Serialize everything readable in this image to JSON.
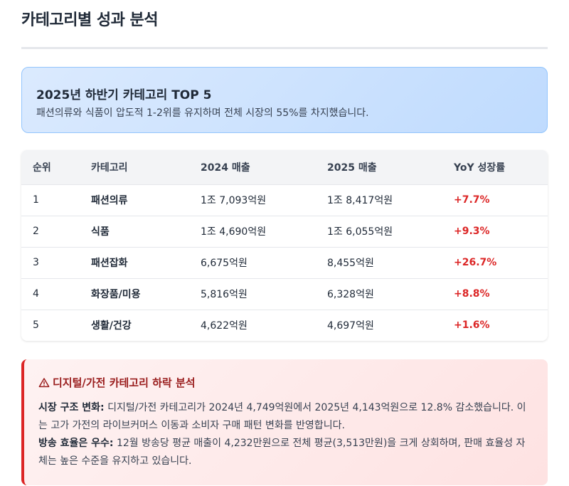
{
  "page": {
    "title": "카테고리별 성과 분석"
  },
  "summary": {
    "title": "2025년 하반기 카테고리 TOP 5",
    "text": "패션의류와 식품이 압도적 1-2위를 유지하며 전체 시장의 55%를 차지했습니다."
  },
  "table": {
    "headers": [
      "순위",
      "카테고리",
      "2024 매출",
      "2025 매출",
      "YoY 성장률"
    ],
    "rows": [
      {
        "rank": "1",
        "category": "패션의류",
        "sales_2024": "1조 7,093억원",
        "sales_2025": "1조 8,417억원",
        "yoy": "+7.7%"
      },
      {
        "rank": "2",
        "category": "식품",
        "sales_2024": "1조 4,690억원",
        "sales_2025": "1조 6,055억원",
        "yoy": "+9.3%"
      },
      {
        "rank": "3",
        "category": "패션잡화",
        "sales_2024": "6,675억원",
        "sales_2025": "8,455억원",
        "yoy": "+26.7%"
      },
      {
        "rank": "4",
        "category": "화장품/미용",
        "sales_2024": "5,816억원",
        "sales_2025": "6,328억원",
        "yoy": "+8.8%"
      },
      {
        "rank": "5",
        "category": "생활/건강",
        "sales_2024": "4,622억원",
        "sales_2025": "4,697억원",
        "yoy": "+1.6%"
      }
    ]
  },
  "alert": {
    "icon": "warning-icon",
    "title": "디지털/가전 카테고리 하락 분석",
    "p1_label": "시장 구조 변화:",
    "p1_text": " 디지털/가전 카테고리가 2024년 4,749억원에서 2025년 4,143억원으로 12.8% 감소했습니다. 이는 고가 가전의 라이브커머스 이동과 소비자 구매 패턴 변화를 반영합니다.",
    "p2_label": "방송 효율은 우수:",
    "p2_text": " 12월 방송당 평균 매출이 4,232만원으로 전체 평균(3,513만원)을 크게 상회하며, 판매 효율성 자체는 높은 수준을 유지하고 있습니다."
  },
  "colors": {
    "accent_red": "#dc2626",
    "summary_bg": "#dbeafe",
    "alert_bg": "#fef2f2"
  }
}
